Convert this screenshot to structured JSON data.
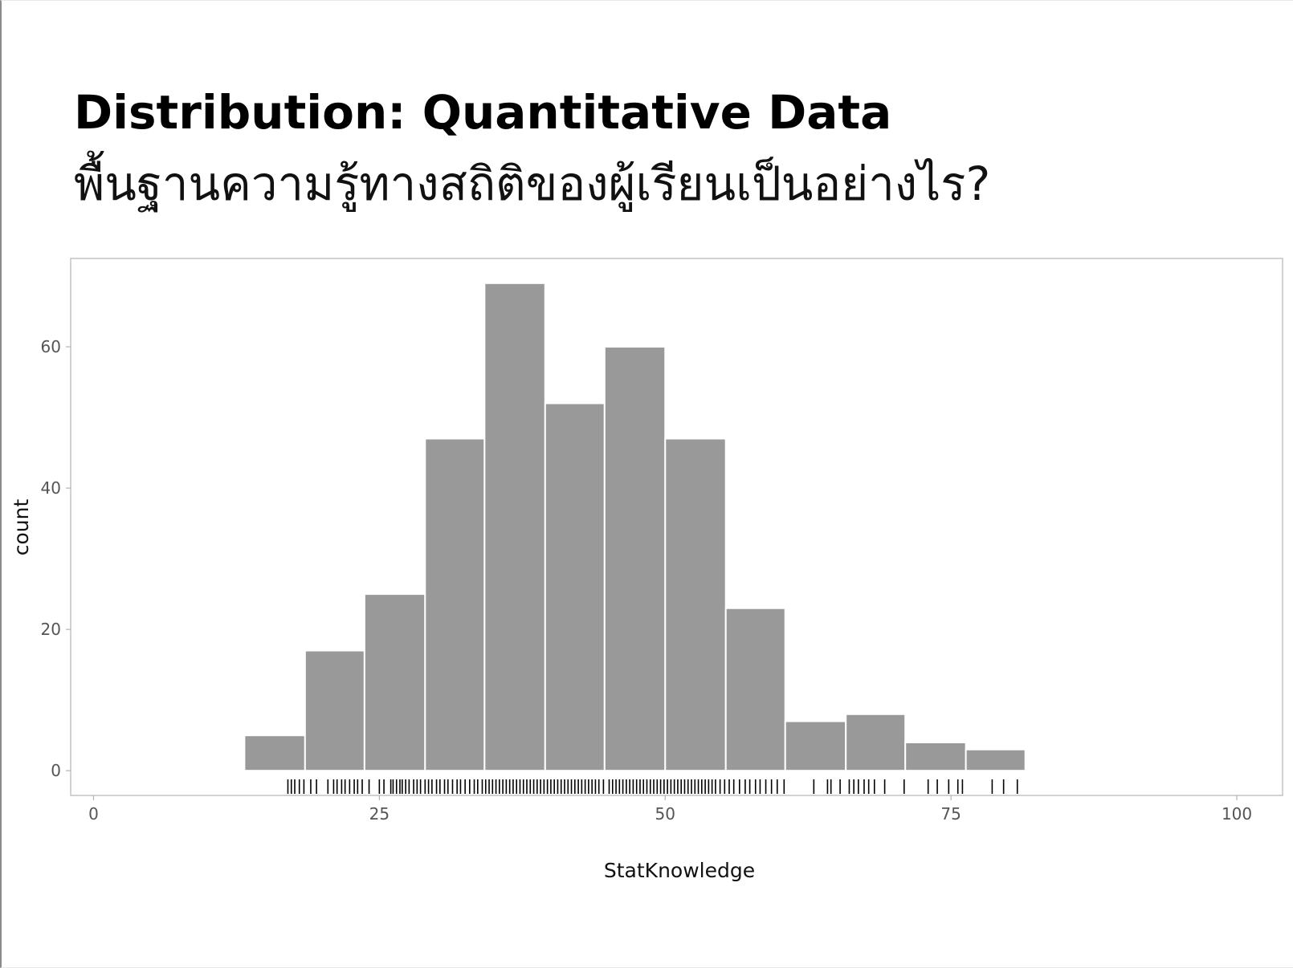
{
  "slide": {
    "title": "Distribution: Quantitative Data",
    "subtitle": "พื้นฐานความรู้ทางสถิติของผู้เรียนเป็นอย่างไร?"
  },
  "colors": {
    "bar_fill": "#999999",
    "bar_stroke": "#ffffff",
    "panel_border": "#b3b3b3",
    "rug": "#000000"
  },
  "chart_data": {
    "type": "bar",
    "subtype": "histogram with rug",
    "xlabel": "StatKnowledge",
    "ylabel": "count",
    "xlim": [
      -2,
      104
    ],
    "ylim": [
      -3.5,
      72.5
    ],
    "xticks": [
      0,
      25,
      50,
      75,
      100
    ],
    "yticks": [
      0,
      20,
      40,
      60
    ],
    "grid": false,
    "bins": [
      {
        "x0": 13.2,
        "x1": 18.5,
        "count": 5
      },
      {
        "x0": 18.5,
        "x1": 23.7,
        "count": 17
      },
      {
        "x0": 23.7,
        "x1": 29.0,
        "count": 25
      },
      {
        "x0": 29.0,
        "x1": 34.2,
        "count": 47
      },
      {
        "x0": 34.2,
        "x1": 39.5,
        "count": 69
      },
      {
        "x0": 39.5,
        "x1": 44.7,
        "count": 52
      },
      {
        "x0": 44.7,
        "x1": 50.0,
        "count": 60
      },
      {
        "x0": 50.0,
        "x1": 55.3,
        "count": 47
      },
      {
        "x0": 55.3,
        "x1": 60.5,
        "count": 23
      },
      {
        "x0": 60.5,
        "x1": 65.8,
        "count": 7
      },
      {
        "x0": 65.8,
        "x1": 71.0,
        "count": 8
      },
      {
        "x0": 71.0,
        "x1": 76.3,
        "count": 4
      },
      {
        "x0": 76.3,
        "x1": 81.5,
        "count": 3
      }
    ],
    "rug_x": [
      17,
      17.3,
      17.6,
      18,
      18.4,
      19,
      19.5,
      20.5,
      21,
      21.3,
      21.7,
      22,
      22.4,
      22.8,
      23.1,
      23.5,
      24.1,
      25,
      25.4,
      26,
      26.2,
      26.5,
      26.8,
      27,
      27.3,
      27.6,
      28,
      28.3,
      28.6,
      29,
      29.3,
      29.6,
      30,
      30.3,
      30.7,
      31,
      31.4,
      31.8,
      32.1,
      32.5,
      32.9,
      33.3,
      33.6,
      34,
      34.3,
      34.6,
      34.9,
      35.2,
      35.5,
      35.8,
      36.1,
      36.4,
      36.7,
      37,
      37.3,
      37.6,
      37.9,
      38.2,
      38.5,
      38.8,
      39.1,
      39.4,
      39.7,
      40,
      40.3,
      40.6,
      40.9,
      41.2,
      41.5,
      41.8,
      42.1,
      42.4,
      42.7,
      43,
      43.3,
      43.6,
      43.9,
      44.2,
      44.6,
      45.1,
      45.4,
      45.7,
      46,
      46.3,
      46.6,
      46.9,
      47.2,
      47.5,
      47.8,
      48.1,
      48.4,
      48.7,
      49,
      49.3,
      49.6,
      49.9,
      50.2,
      50.5,
      50.8,
      51.1,
      51.4,
      51.7,
      52,
      52.3,
      52.6,
      52.9,
      53.2,
      53.5,
      53.8,
      54.1,
      54.4,
      54.8,
      55.2,
      55.6,
      56,
      56.5,
      57,
      57.4,
      57.9,
      58.3,
      58.8,
      59.3,
      59.8,
      60.4,
      63,
      64.2,
      64.5,
      65.3,
      66.1,
      66.5,
      66.9,
      67.4,
      67.8,
      68.3,
      69.2,
      70.9,
      73,
      73.8,
      74.8,
      75.6,
      76,
      78.6,
      79.6,
      80.8
    ]
  }
}
